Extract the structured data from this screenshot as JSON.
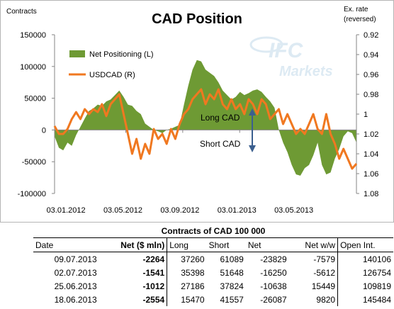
{
  "chart_data": {
    "type": "area",
    "title": "CAD Position",
    "ylabel_left": "Contracts",
    "ylabel_right_line1": "Ex. rate",
    "ylabel_right_line2": "(reversed)",
    "y_left_ticks": [
      "150000",
      "100000",
      "50000",
      "0",
      "-50000",
      "-100000"
    ],
    "y_right_ticks": [
      "0.92",
      "0.94",
      "0.96",
      "0.98",
      "1",
      "1.02",
      "1.04",
      "1.06",
      "1.08"
    ],
    "x_tick_labels": [
      "03.01.2012",
      "03.05.2012",
      "03.09.2012",
      "03.01.2013",
      "03.05.2013"
    ],
    "y_left_range": [
      -100000,
      150000
    ],
    "y_right_range": [
      0.92,
      1.08
    ],
    "y_right_reversed": true,
    "legend_placement": "top-left",
    "grid": false,
    "series": [
      {
        "name": "Net Positioning (L)",
        "color": "#6e9a34",
        "values": [
          -10000,
          -28000,
          -32000,
          -20000,
          -25000,
          -8000,
          5000,
          18000,
          30000,
          34000,
          40000,
          38000,
          45000,
          48000,
          55000,
          62000,
          52000,
          40000,
          38000,
          30000,
          25000,
          10000,
          5000,
          0,
          -2000,
          -5000,
          0,
          2000,
          5000,
          8000,
          40000,
          70000,
          95000,
          110000,
          108000,
          95000,
          90000,
          85000,
          75000,
          62000,
          55000,
          48000,
          52000,
          60000,
          55000,
          58000,
          62000,
          64000,
          60000,
          52000,
          45000,
          35000,
          0,
          -20000,
          -35000,
          -55000,
          -70000,
          -72000,
          -60000,
          -55000,
          -40000,
          -20000,
          -55000,
          -70000,
          -67000,
          -45000,
          -30000,
          -10000,
          -2000,
          -5000,
          -20000
        ]
      },
      {
        "name": "USDCAD (R)",
        "color": "#f07820",
        "values": [
          1.012,
          1.02,
          1.02,
          1.015,
          1.005,
          0.998,
          1.005,
          0.995,
          1.0,
          0.995,
          0.998,
          0.99,
          1.002,
          0.99,
          0.985,
          0.98,
          1.0,
          1.02,
          1.04,
          1.025,
          1.045,
          1.03,
          1.04,
          1.015,
          1.025,
          1.02,
          1.03,
          1.015,
          1.025,
          1.01,
          1.0,
          0.995,
          0.985,
          0.98,
          0.975,
          0.99,
          0.98,
          0.985,
          0.975,
          0.99,
          0.995,
          0.985,
          0.995,
          0.99,
          1.0,
          0.985,
          0.99,
          1.0,
          0.985,
          0.99,
          1.005,
          1.0,
          0.995,
          1.01,
          1.0,
          1.01,
          1.02,
          1.015,
          1.02,
          1.01,
          1.0,
          1.015,
          1.02,
          1.0,
          1.02,
          1.03,
          1.045,
          1.035,
          1.045,
          1.055,
          1.05
        ]
      }
    ],
    "annotations": {
      "upper": "Long CAD",
      "lower": "Short CAD"
    }
  },
  "watermark": {
    "line1": "IFC",
    "line2": "Markets"
  },
  "table": {
    "title": "Contracts of CAD 100 000",
    "headers": [
      "Date",
      "Net ($ mln)",
      "Long",
      "Short",
      "Net",
      "Net w/w",
      "Open Int."
    ],
    "rows": [
      [
        "09.07.2013",
        "-2264",
        "37260",
        "61089",
        "-23829",
        "-7579",
        "140106"
      ],
      [
        "02.07.2013",
        "-1541",
        "35398",
        "51648",
        "-16250",
        "-5612",
        "126754"
      ],
      [
        "25.06.2013",
        "-1012",
        "27186",
        "37824",
        "-10638",
        "15449",
        "109819"
      ],
      [
        "18.06.2013",
        "-2554",
        "15470",
        "41557",
        "-26087",
        "9820",
        "145484"
      ]
    ]
  }
}
